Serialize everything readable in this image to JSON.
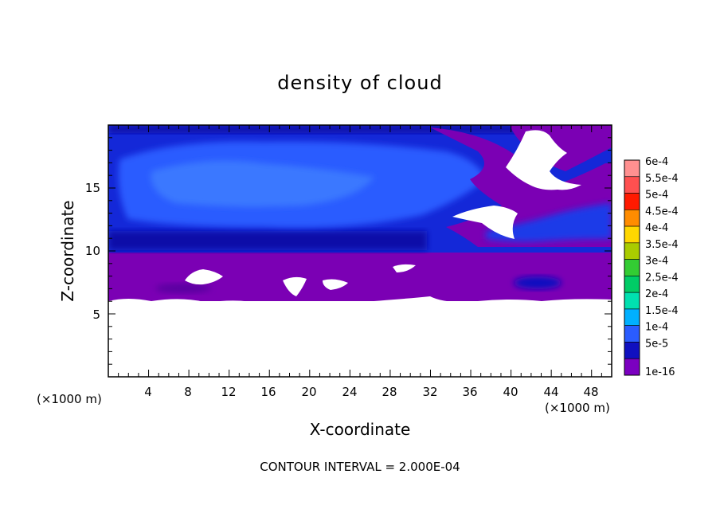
{
  "chart_data": {
    "type": "heatmap",
    "title": "density of cloud",
    "xlabel": "X-coordinate",
    "ylabel": "Z-coordinate",
    "x_unit": "(×1000 m)",
    "y_unit": "(×1000 m)",
    "xlim": [
      0,
      50
    ],
    "ylim": [
      0,
      20
    ],
    "x_ticks": [
      "4",
      "8",
      "12",
      "16",
      "20",
      "24",
      "28",
      "32",
      "36",
      "40",
      "44",
      "48"
    ],
    "y_ticks": [
      "5",
      "10",
      "15"
    ],
    "contour_interval": "CONTOUR INTERVAL = 2.000E-04",
    "colorbar": {
      "labels": [
        "6e-4",
        "5.5e-4",
        "5e-4",
        "4.5e-4",
        "4e-4",
        "3.5e-4",
        "3e-4",
        "2.5e-4",
        "2e-4",
        "1.5e-4",
        "1e-4",
        "5e-5",
        "1e-16"
      ],
      "colors": [
        "#ff9090",
        "#ff5050",
        "#ff1a00",
        "#ff8c00",
        "#ffd700",
        "#aacc00",
        "#33cc33",
        "#00cc66",
        "#00e0b0",
        "#00b0ff",
        "#2a5cff",
        "#1010c0",
        "#7b00c0"
      ]
    },
    "regions": {
      "cloud_base_z": 6.2,
      "cloud_top_z": 20,
      "upper_blue_band_z": [
        10,
        20
      ],
      "lower_purple_band_z": [
        6.2,
        10
      ]
    },
    "colors": {
      "purple": "#7b00b4",
      "dark_blue": "#0a0aa8",
      "blue": "#1e3cf0",
      "light_blue": "#2f6cff",
      "white": "#ffffff"
    }
  }
}
